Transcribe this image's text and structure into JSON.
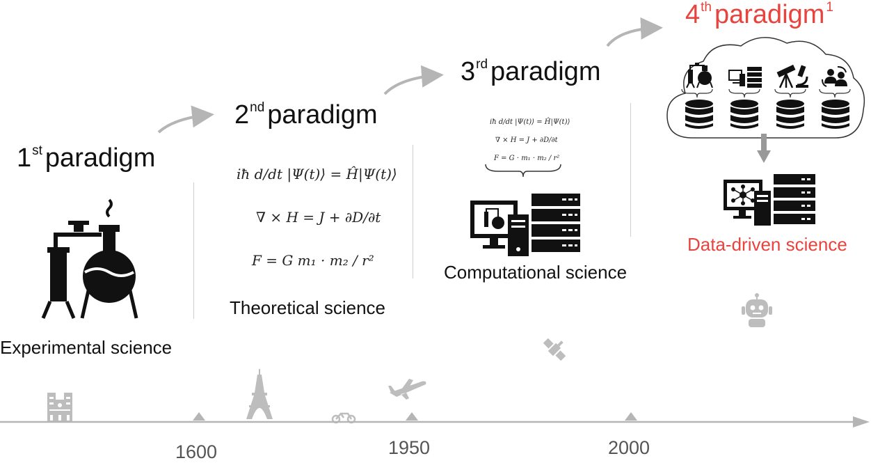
{
  "paradigms": [
    {
      "ordinal": "1",
      "suffix": "st",
      "word": "paradigm",
      "label": "Experimental science"
    },
    {
      "ordinal": "2",
      "suffix": "nd",
      "word": "paradigm",
      "label": "Theoretical science",
      "equations": [
        "iħ d/dt |Ψ(t)⟩ = Ĥ|Ψ(t)⟩",
        "∇ × H = J + ∂D/∂t",
        "F = G m₁ · m₂ / r²"
      ]
    },
    {
      "ordinal": "3",
      "suffix": "rd",
      "word": "paradigm",
      "label": "Computational science",
      "equations": [
        "iħ d/dt |Ψ(t)⟩ = Ĥ|Ψ(t)⟩",
        "∇ × H = J + ∂D/∂t",
        "F = G · m₁ · m₂ / r²"
      ]
    },
    {
      "ordinal": "4",
      "suffix": "th",
      "word": "paradigm",
      "footnote": "1",
      "label": "Data-driven science"
    }
  ],
  "timeline": {
    "ticks": [
      "1600",
      "1950",
      "2000"
    ]
  },
  "colors": {
    "accent_red": "#e8433d",
    "arrow_gray": "#b5b5b5",
    "icon_gray": "#bdbdbd",
    "ink": "#111111"
  },
  "icons": [
    "flask-apparatus-icon",
    "computer-server-icon",
    "database-icon",
    "telescope-icon",
    "microscope-icon",
    "people-icon",
    "neural-network-icon",
    "robot-icon",
    "satellite-icon",
    "airplane-icon",
    "motorbike-icon",
    "eiffel-tower-icon",
    "notre-dame-icon"
  ]
}
